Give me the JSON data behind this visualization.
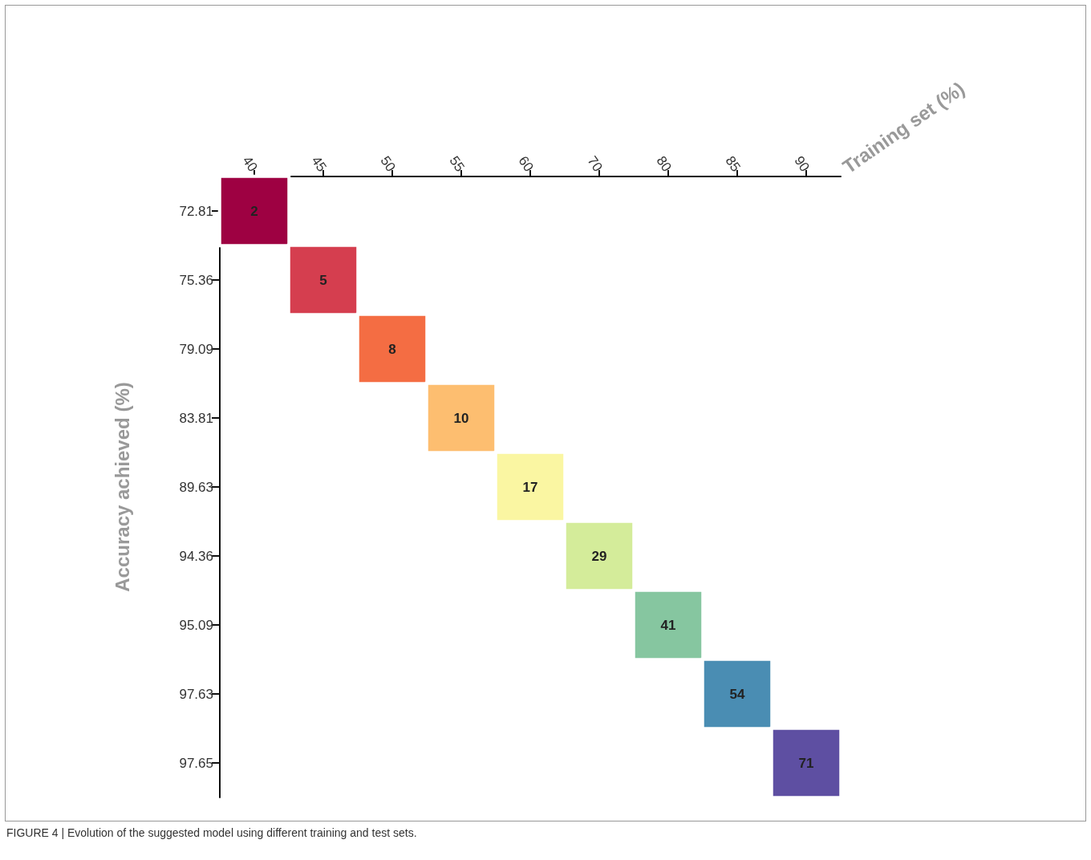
{
  "chart_data": {
    "type": "heatmap",
    "categories": [
      "40",
      "45",
      "50",
      "55",
      "60",
      "70",
      "80",
      "85",
      "90"
    ],
    "y_categories": [
      "72.81",
      "75.36",
      "79.09",
      "83.81",
      "89.63",
      "94.36",
      "95.09",
      "97.63",
      "97.65"
    ],
    "cells": [
      [
        2,
        null,
        null,
        null,
        null,
        null,
        null,
        null,
        null
      ],
      [
        null,
        5,
        null,
        null,
        null,
        null,
        null,
        null,
        null
      ],
      [
        null,
        null,
        8,
        null,
        null,
        null,
        null,
        null,
        null
      ],
      [
        null,
        null,
        null,
        10,
        null,
        null,
        null,
        null,
        null
      ],
      [
        null,
        null,
        null,
        null,
        17,
        null,
        null,
        null,
        null
      ],
      [
        null,
        null,
        null,
        null,
        null,
        29,
        null,
        null,
        null
      ],
      [
        null,
        null,
        null,
        null,
        null,
        null,
        41,
        null,
        null
      ],
      [
        null,
        null,
        null,
        null,
        null,
        null,
        null,
        54,
        null
      ],
      [
        null,
        null,
        null,
        null,
        null,
        null,
        null,
        null,
        71
      ]
    ],
    "colors": [
      "#9e0142",
      "#d53e4f",
      "#f46d43",
      "#fdbe70",
      "#faf6a2",
      "#d4ec9a",
      "#86c6a0",
      "#4a8db3",
      "#5e4fa2"
    ],
    "data_labels": true,
    "xlabel": "Training set (%)",
    "ylabel": "Accuracy achieved (%)",
    "annotations": [
      "FIGURE 4 | Evolution of the suggested model using different training and test sets."
    ]
  }
}
